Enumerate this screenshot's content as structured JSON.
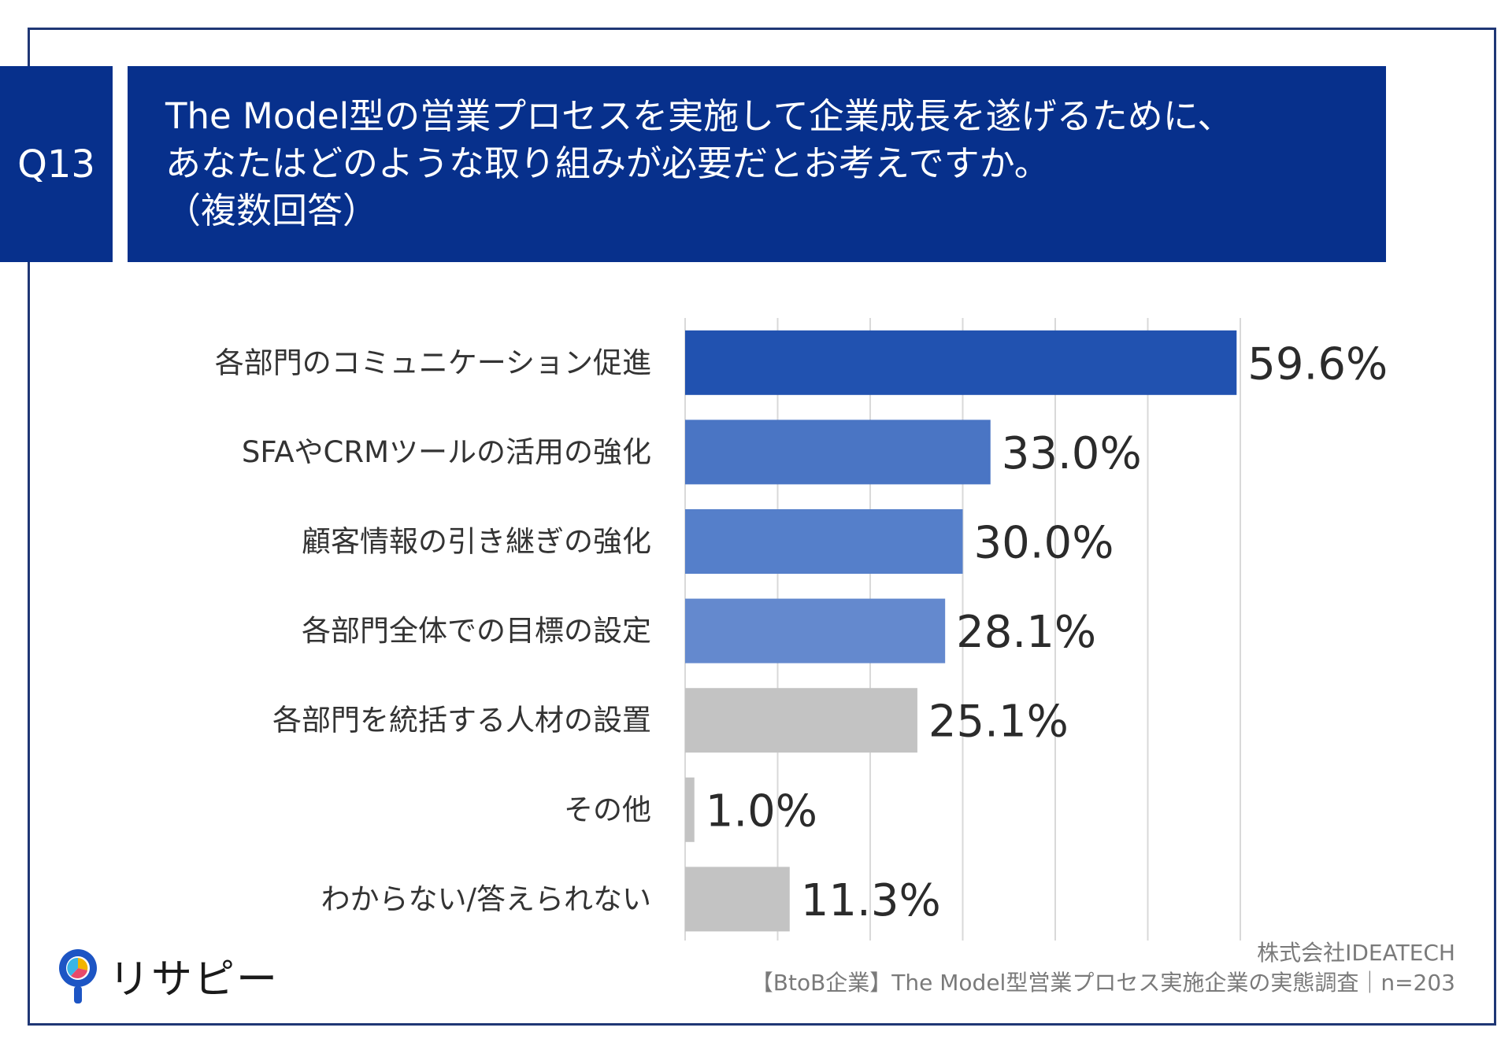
{
  "question": {
    "number": "Q13",
    "lines": [
      "The Model型の営業プロセスを実施して企業成長を遂げるために、",
      "あなたはどのような取り組みが必要だとお考えですか。",
      "（複数回答）"
    ]
  },
  "chart_data": {
    "type": "bar",
    "orientation": "horizontal",
    "categories": [
      "各部門のコミュニケーション促進",
      "SFAやCRMツールの活用の強化",
      "顧客情報の引き継ぎの強化",
      "各部門全体での目標の設定",
      "各部門を統括する人材の設置",
      "その他",
      "わからない/答えられない"
    ],
    "values": [
      59.6,
      33.0,
      30.0,
      28.1,
      25.1,
      1.0,
      11.3
    ],
    "value_labels": [
      "59.6%",
      "33.0%",
      "30.0%",
      "28.1%",
      "25.1%",
      "1.0%",
      "11.3%"
    ],
    "bar_colors": [
      "#2152b0",
      "#4a75c4",
      "#557fca",
      "#6489ce",
      "#c3c3c3",
      "#c3c3c3",
      "#c3c3c3"
    ],
    "xlim": [
      0,
      60
    ],
    "grid": true,
    "title": "",
    "xlabel": "",
    "ylabel": ""
  },
  "footer": {
    "company": "株式会社IDEATECH",
    "survey": "【BtoB企業】The Model型営業プロセス実施企業の実態調査｜n=203"
  },
  "logo": {
    "text": "リサピー"
  },
  "colors": {
    "navy": "#07308c",
    "border": "#1f3775",
    "grid": "#d9d9d9"
  }
}
